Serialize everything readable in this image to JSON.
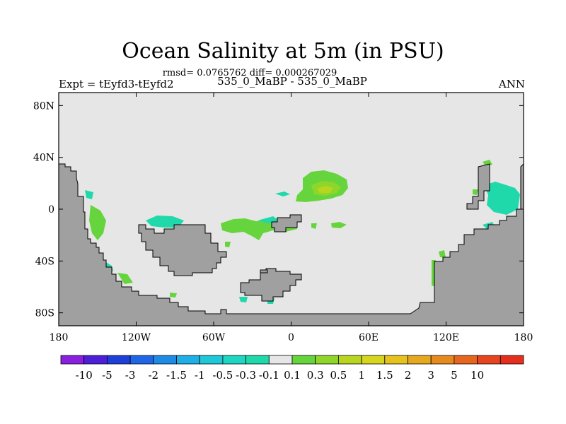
{
  "title": "Ocean Salinity at 5m (in PSU)",
  "stats": "rmsd= 0.0765762 diff= 0.000267029",
  "experiment": "Expt = tEyfd3-tEyfd2",
  "case": "535_0_MaBP - 535_0_MaBP",
  "season": "ANN",
  "map": {
    "lon_range": [
      -180,
      180
    ],
    "lat_range": [
      -90,
      90
    ],
    "ocean_color": "#e6e6e6",
    "land_color": "#a0a0a0",
    "y_ticks": [
      {
        "value": 80,
        "label": "80N"
      },
      {
        "value": 40,
        "label": "40N"
      },
      {
        "value": 0,
        "label": "0"
      },
      {
        "value": -40,
        "label": "40S"
      },
      {
        "value": -80,
        "label": "80S"
      }
    ],
    "x_ticks": [
      {
        "value": -180,
        "label": "180"
      },
      {
        "value": -120,
        "label": "120W"
      },
      {
        "value": -60,
        "label": "60W"
      },
      {
        "value": 0,
        "label": "0"
      },
      {
        "value": 60,
        "label": "60E"
      },
      {
        "value": 120,
        "label": "120E"
      },
      {
        "value": 180,
        "label": "180"
      }
    ]
  },
  "colorbar": {
    "colors": [
      "#8a1fe0",
      "#4d1fd9",
      "#1f3fd9",
      "#1f66e6",
      "#1f8ae6",
      "#1faee6",
      "#1fc8d9",
      "#1fd6c2",
      "#1fd9aa",
      "#e6e6e6",
      "#66d43d",
      "#8fd62a",
      "#b8d61f",
      "#d6d61f",
      "#e6c21f",
      "#e6a81f",
      "#e68a1f",
      "#e6661f",
      "#e6461f",
      "#e62e1f"
    ],
    "labels": [
      "-10",
      "-5",
      "-3",
      "-2",
      "-1.5",
      "-1",
      "-0.5",
      "-0.3",
      "-0.1",
      "0.1",
      "0.3",
      "0.5",
      "1",
      "1.5",
      "2",
      "3",
      "5",
      "10"
    ]
  }
}
